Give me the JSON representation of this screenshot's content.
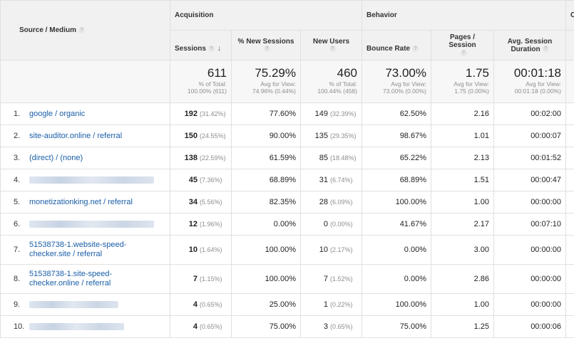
{
  "groups": {
    "acquisition": "Acquisition",
    "behavior": "Behavior",
    "conversions": "C"
  },
  "headers": {
    "source_medium": "Source / Medium",
    "sessions": "Sessions",
    "new_sessions": "% New Sessions",
    "new_users": "New Users",
    "bounce_rate": "Bounce Rate",
    "pages_session": "Pages / Session",
    "avg_duration_line1": "Avg. Session",
    "avg_duration_line2": "Duration",
    "help_glyph": "?",
    "sort_glyph": "↓"
  },
  "totals": {
    "sessions": "611",
    "sessions_sub1": "% of Total:",
    "sessions_sub2": "100.00% (611)",
    "new_sessions": "75.29%",
    "new_sessions_sub1": "Avg for View:",
    "new_sessions_sub2": "74.96% (0.44%)",
    "new_users": "460",
    "new_users_sub1": "% of Total:",
    "new_users_sub2": "100.44% (458)",
    "bounce_rate": "73.00%",
    "bounce_rate_sub1": "Avg for View:",
    "bounce_rate_sub2": "73.00% (0.00%)",
    "pages_session": "1.75",
    "pages_session_sub1": "Avg for View:",
    "pages_session_sub2": "1.75 (0.00%)",
    "avg_duration": "00:01:18",
    "avg_duration_sub1": "Avg for View:",
    "avg_duration_sub2": "00:01:18 (0.00%)"
  },
  "rows": [
    {
      "idx": "1.",
      "source": "google / organic",
      "sessions": "192",
      "sessions_pct": "(31.42%)",
      "new_sessions": "77.60%",
      "new_users": "149",
      "new_users_pct": "(32.39%)",
      "bounce": "62.50%",
      "pages": "2.16",
      "duration": "00:02:00"
    },
    {
      "idx": "2.",
      "source": "site-auditor.online / referral",
      "sessions": "150",
      "sessions_pct": "(24.55%)",
      "new_sessions": "90.00%",
      "new_users": "135",
      "new_users_pct": "(29.35%)",
      "bounce": "98.67%",
      "pages": "1.01",
      "duration": "00:00:07"
    },
    {
      "idx": "3.",
      "source": "(direct) / (none)",
      "sessions": "138",
      "sessions_pct": "(22.59%)",
      "new_sessions": "61.59%",
      "new_users": "85",
      "new_users_pct": "(18.48%)",
      "bounce": "65.22%",
      "pages": "2.13",
      "duration": "00:01:52"
    },
    {
      "idx": "4.",
      "source": "",
      "sessions": "45",
      "sessions_pct": "(7.36%)",
      "new_sessions": "68.89%",
      "new_users": "31",
      "new_users_pct": "(6.74%)",
      "bounce": "68.89%",
      "pages": "1.51",
      "duration": "00:00:47"
    },
    {
      "idx": "5.",
      "source": "monetizationking.net / referral",
      "sessions": "34",
      "sessions_pct": "(5.56%)",
      "new_sessions": "82.35%",
      "new_users": "28",
      "new_users_pct": "(6.09%)",
      "bounce": "100.00%",
      "pages": "1.00",
      "duration": "00:00:00"
    },
    {
      "idx": "6.",
      "source": "",
      "sessions": "12",
      "sessions_pct": "(1.96%)",
      "new_sessions": "0.00%",
      "new_users": "0",
      "new_users_pct": "(0.00%)",
      "bounce": "41.67%",
      "pages": "2.17",
      "duration": "00:07:10"
    },
    {
      "idx": "7.",
      "source": "51538738-1.website-speed-checker.site / referral",
      "sessions": "10",
      "sessions_pct": "(1.64%)",
      "new_sessions": "100.00%",
      "new_users": "10",
      "new_users_pct": "(2.17%)",
      "bounce": "0.00%",
      "pages": "3.00",
      "duration": "00:00:00"
    },
    {
      "idx": "8.",
      "source": "51538738-1.site-speed-checker.online / referral",
      "sessions": "7",
      "sessions_pct": "(1.15%)",
      "new_sessions": "100.00%",
      "new_users": "7",
      "new_users_pct": "(1.52%)",
      "bounce": "0.00%",
      "pages": "2.86",
      "duration": "00:00:00"
    },
    {
      "idx": "9.",
      "source": "",
      "sessions": "4",
      "sessions_pct": "(0.65%)",
      "new_sessions": "25.00%",
      "new_users": "1",
      "new_users_pct": "(0.22%)",
      "bounce": "100.00%",
      "pages": "1.00",
      "duration": "00:00:00"
    },
    {
      "idx": "10.",
      "source": "",
      "sessions": "4",
      "sessions_pct": "(0.65%)",
      "new_sessions": "75.00%",
      "new_users": "3",
      "new_users_pct": "(0.65%)",
      "bounce": "75.00%",
      "pages": "1.25",
      "duration": "00:00:06"
    }
  ]
}
